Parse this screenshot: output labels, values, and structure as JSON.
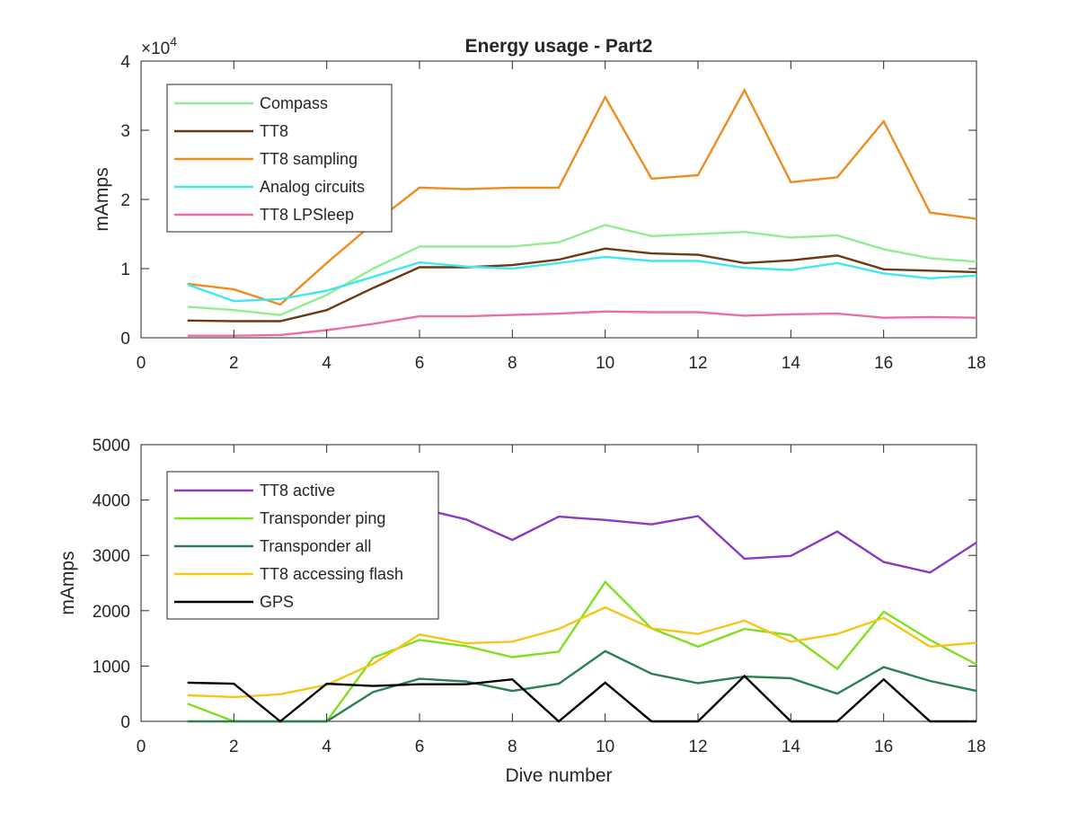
{
  "figure": {
    "title": "Energy usage - Part2"
  },
  "chart_data": [
    {
      "type": "line",
      "title": "Energy usage - Part2",
      "xlabel": "",
      "ylabel": "mAmps",
      "y_exponent_label": "×10",
      "y_exponent_power": "4",
      "xlim": [
        0,
        18
      ],
      "ylim": [
        0,
        4
      ],
      "x_ticks": [
        "0",
        "2",
        "4",
        "6",
        "8",
        "10",
        "12",
        "14",
        "16",
        "18"
      ],
      "y_ticks": [
        "0",
        "1",
        "2",
        "3",
        "4"
      ],
      "grid": false,
      "legend_position": "top-left",
      "x": [
        1,
        2,
        3,
        4,
        5,
        6,
        7,
        8,
        9,
        10,
        11,
        12,
        13,
        14,
        15,
        16,
        17,
        18
      ],
      "series": [
        {
          "name": "Compass",
          "color": "#90ee90",
          "values": [
            0.45,
            0.4,
            0.33,
            0.62,
            1.0,
            1.32,
            1.32,
            1.32,
            1.38,
            1.63,
            1.47,
            1.5,
            1.53,
            1.45,
            1.48,
            1.28,
            1.15,
            1.1
          ]
        },
        {
          "name": "TT8",
          "color": "#6b3a14",
          "values": [
            0.25,
            0.24,
            0.24,
            0.4,
            0.72,
            1.02,
            1.02,
            1.05,
            1.13,
            1.29,
            1.22,
            1.2,
            1.08,
            1.12,
            1.19,
            0.99,
            0.97,
            0.95
          ]
        },
        {
          "name": "TT8 sampling",
          "color": "#f08c1e",
          "values": [
            0.78,
            0.7,
            0.48,
            1.08,
            1.65,
            2.17,
            2.15,
            2.17,
            2.17,
            3.48,
            2.3,
            2.35,
            3.58,
            2.25,
            2.32,
            3.13,
            1.81,
            1.72
          ]
        },
        {
          "name": "Analog circuits",
          "color": "#3fe8f0",
          "values": [
            0.77,
            0.53,
            0.56,
            0.68,
            0.88,
            1.09,
            1.03,
            1.0,
            1.08,
            1.17,
            1.11,
            1.11,
            1.01,
            0.98,
            1.08,
            0.93,
            0.86,
            0.9
          ]
        },
        {
          "name": "TT8 LPSleep",
          "color": "#e86fa8",
          "values": [
            0.03,
            0.03,
            0.04,
            0.11,
            0.2,
            0.31,
            0.31,
            0.33,
            0.35,
            0.38,
            0.37,
            0.37,
            0.32,
            0.34,
            0.35,
            0.29,
            0.3,
            0.29
          ]
        }
      ]
    },
    {
      "type": "line",
      "title": "",
      "xlabel": "Dive number",
      "ylabel": "mAmps",
      "xlim": [
        0,
        18
      ],
      "ylim": [
        0,
        5000
      ],
      "x_ticks": [
        "0",
        "2",
        "4",
        "6",
        "8",
        "10",
        "12",
        "14",
        "16",
        "18"
      ],
      "y_ticks": [
        "0",
        "1000",
        "2000",
        "3000",
        "4000",
        "5000"
      ],
      "grid": false,
      "legend_position": "top-left",
      "x": [
        1,
        2,
        3,
        4,
        5,
        6,
        7,
        8,
        9,
        10,
        11,
        12,
        13,
        14,
        15,
        16,
        17,
        18
      ],
      "series": [
        {
          "name": "TT8 active",
          "color": "#8a3bbf",
          "values": [
            4100,
            4100,
            4050,
            4000,
            3950,
            3850,
            3650,
            3280,
            3700,
            3640,
            3560,
            3710,
            2940,
            2990,
            3430,
            2880,
            2690,
            3230
          ]
        },
        {
          "name": "Transponder ping",
          "color": "#7fe01e",
          "values": [
            320,
            0,
            0,
            0,
            1150,
            1470,
            1360,
            1160,
            1260,
            2520,
            1680,
            1350,
            1670,
            1560,
            950,
            1980,
            1470,
            1030
          ]
        },
        {
          "name": "Transponder all",
          "color": "#2f7f55",
          "values": [
            0,
            0,
            0,
            0,
            530,
            770,
            720,
            550,
            680,
            1270,
            860,
            690,
            810,
            780,
            500,
            980,
            730,
            550
          ]
        },
        {
          "name": "TT8 accessing flash",
          "color": "#f5c518",
          "values": [
            470,
            440,
            490,
            660,
            1040,
            1570,
            1410,
            1440,
            1670,
            2060,
            1680,
            1580,
            1820,
            1440,
            1580,
            1870,
            1350,
            1420
          ]
        },
        {
          "name": "GPS",
          "color": "#000000",
          "values": [
            700,
            680,
            0,
            680,
            640,
            670,
            670,
            760,
            0,
            700,
            0,
            0,
            820,
            0,
            0,
            760,
            0,
            0
          ]
        }
      ]
    }
  ]
}
